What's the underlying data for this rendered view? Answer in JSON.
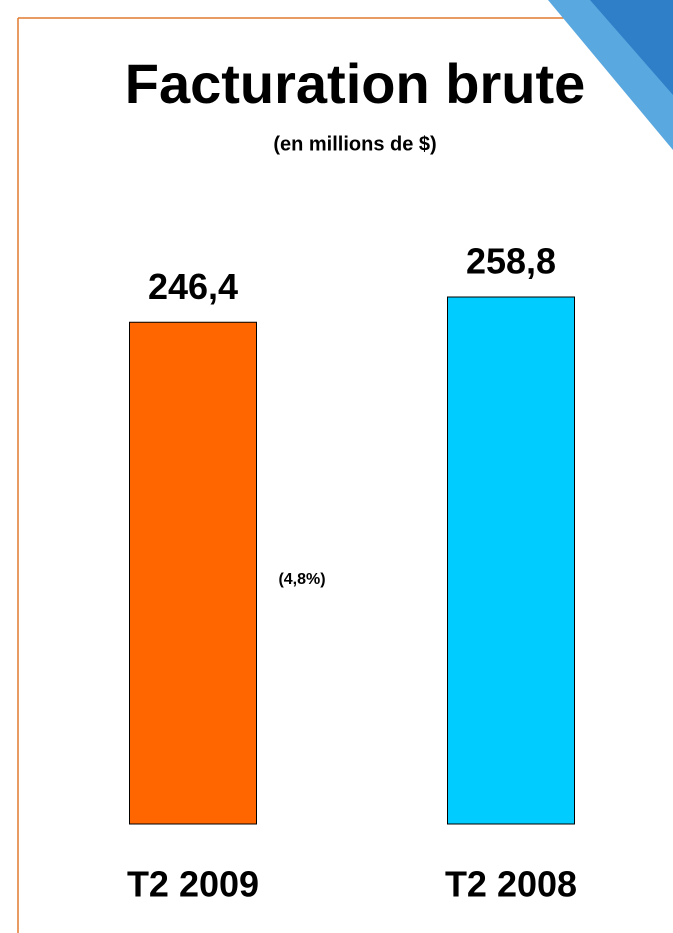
{
  "chart_data": {
    "type": "bar",
    "title": "Facturation brute",
    "subtitle": "(en millions de $)",
    "categories": [
      "T2 2009",
      "T2 2008"
    ],
    "values": [
      246.4,
      258.8
    ],
    "value_labels": [
      "246,4",
      "258,8"
    ],
    "colors": [
      "#ff6600",
      "#00ccff"
    ],
    "annotation": "(4,8%)"
  }
}
